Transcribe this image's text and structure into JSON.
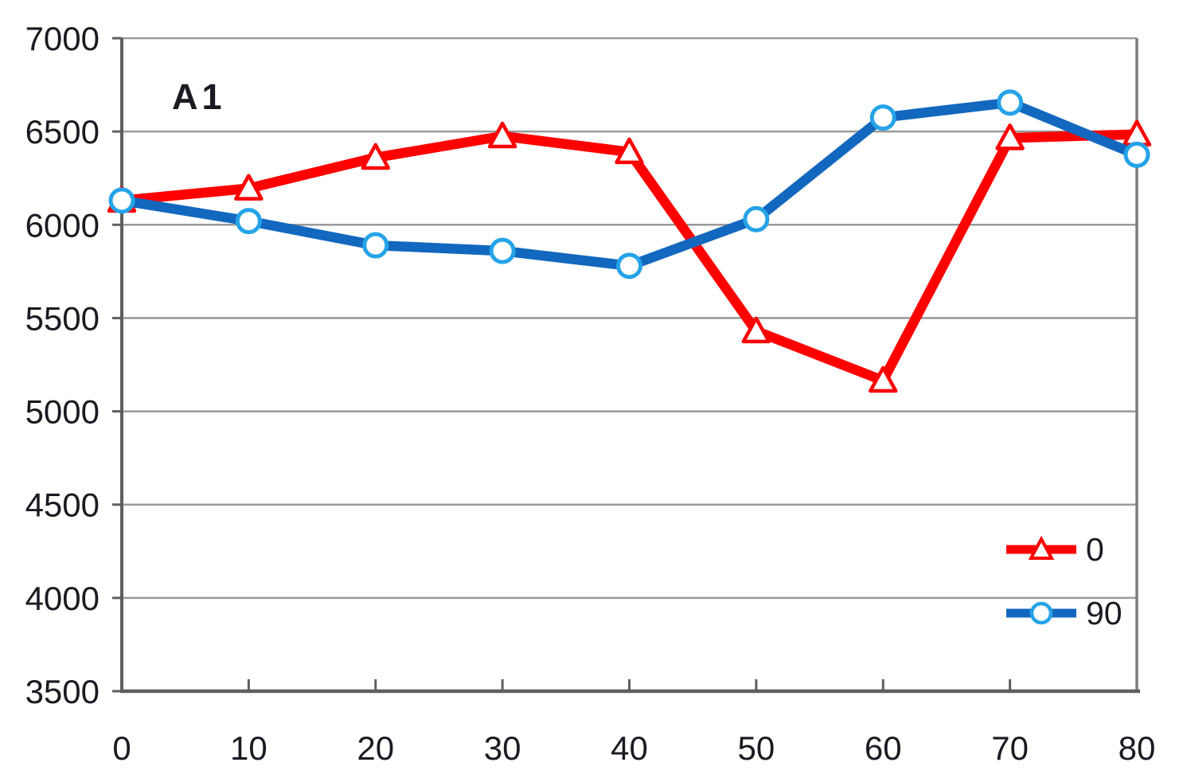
{
  "title": "A1",
  "colors": {
    "background": "#ffffff",
    "grid": "#9a9a9a",
    "axis": "#5f5f5f",
    "text": "#1a1a22",
    "series_0_line": "#fe0000",
    "series_0_marker_stroke": "#fe0000",
    "series_90_line": "#1268be",
    "series_90_marker_stroke": "#25a3e8",
    "marker_fill": "#ffffff"
  },
  "chart_data": {
    "type": "line",
    "title": "A1",
    "xlabel": "",
    "ylabel": "",
    "x": [
      0,
      10,
      20,
      30,
      40,
      50,
      60,
      70,
      80
    ],
    "series": [
      {
        "name": "0",
        "color": "#fe0000",
        "marker": "triangle",
        "marker_stroke": "#fe0000",
        "values": [
          6130,
          6195,
          6360,
          6475,
          6390,
          5430,
          5165,
          6465,
          6485
        ]
      },
      {
        "name": "90",
        "color": "#1268be",
        "marker": "circle",
        "marker_stroke": "#25a3e8",
        "values": [
          6130,
          6020,
          5890,
          5860,
          5780,
          6030,
          6575,
          6655,
          6375
        ]
      }
    ],
    "xlim": [
      0,
      80
    ],
    "ylim": [
      3500,
      7000
    ],
    "xticks": [
      0,
      10,
      20,
      30,
      40,
      50,
      60,
      70,
      80
    ],
    "yticks": [
      3500,
      4000,
      4500,
      5000,
      5500,
      6000,
      6500,
      7000
    ],
    "grid": true,
    "legend_position": "right-middle",
    "legend": [
      "0",
      "90"
    ]
  }
}
